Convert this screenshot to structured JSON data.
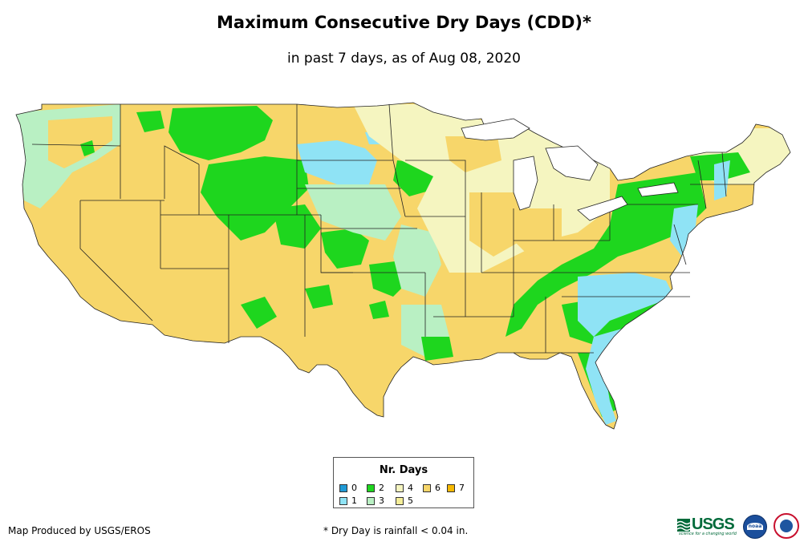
{
  "header": {
    "title": "Maximum Consecutive Dry Days (CDD)*",
    "subtitle": "in past 7 days, as of Aug 08, 2020"
  },
  "legend": {
    "title": "Nr. Days",
    "items": [
      {
        "label": "0",
        "color": "#1f9ad6"
      },
      {
        "label": "1",
        "color": "#8fe3f5"
      },
      {
        "label": "2",
        "color": "#1ed61e"
      },
      {
        "label": "3",
        "color": "#b9f0c3"
      },
      {
        "label": "4",
        "color": "#f5f5c0"
      },
      {
        "label": "5",
        "color": "#f5ee99"
      },
      {
        "label": "6",
        "color": "#f7d66a"
      },
      {
        "label": "7",
        "color": "#f5b800"
      }
    ]
  },
  "footer": {
    "credit": "Map Produced by USGS/EROS",
    "note": "* Dry Day is rainfall < 0.04 in."
  },
  "logos": {
    "usgs_text": "USGS",
    "usgs_tagline": "science for a changing world",
    "noaa_text": "noaa"
  }
}
